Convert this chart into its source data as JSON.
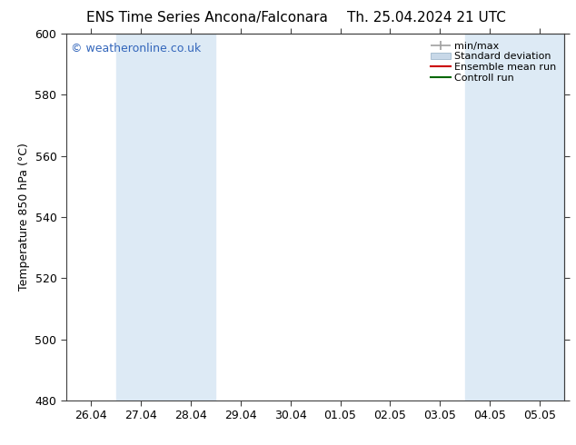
{
  "title_left": "ENS Time Series Ancona/Falconara",
  "title_right": "Th. 25.04.2024 21 UTC",
  "ylabel": "Temperature 850 hPa (°C)",
  "watermark": "© weatheronline.co.uk",
  "ylim": [
    480,
    600
  ],
  "yticks": [
    480,
    500,
    520,
    540,
    560,
    580,
    600
  ],
  "xtick_labels": [
    "26.04",
    "27.04",
    "28.04",
    "29.04",
    "30.04",
    "01.05",
    "02.05",
    "03.05",
    "04.05",
    "05.05"
  ],
  "n_xticks": 10,
  "shaded_indices": [
    1,
    2,
    8,
    9
  ],
  "right_edge_shade": true,
  "band_color": "#ddeaf5",
  "background_color": "#ffffff",
  "legend_entries": [
    {
      "label": "min/max",
      "type": "minmax",
      "color": "#a0a0a0"
    },
    {
      "label": "Standard deviation",
      "type": "box",
      "color": "#c8d8e8"
    },
    {
      "label": "Ensemble mean run",
      "type": "line",
      "color": "#cc0000"
    },
    {
      "label": "Controll run",
      "type": "line",
      "color": "#006600"
    }
  ],
  "title_fontsize": 11,
  "tick_fontsize": 9,
  "ylabel_fontsize": 9,
  "watermark_color": "#3366bb",
  "watermark_fontsize": 9,
  "spine_color": "#404040",
  "tick_color": "#404040"
}
